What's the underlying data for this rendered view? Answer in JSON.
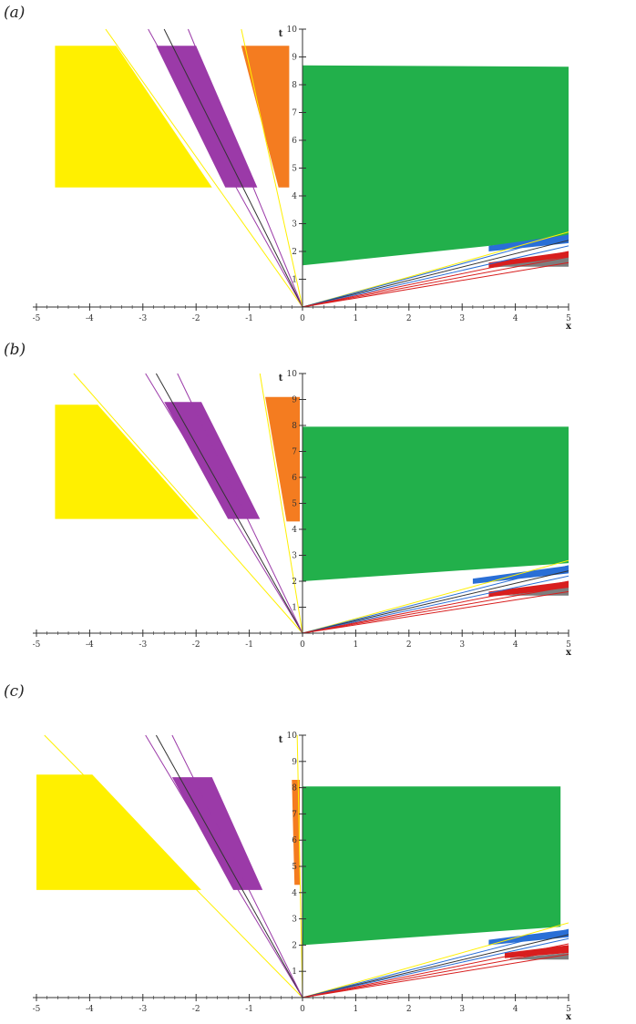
{
  "colors": {
    "yellow": "#fff000",
    "purple": "#9b3aa8",
    "orange": "#f47c20",
    "green": "#22b04b",
    "blue": "#2a6fd6",
    "red": "#d81e1e",
    "gray": "#7d7d7d",
    "dark": "#333333"
  },
  "chart_data": [
    {
      "type": "area",
      "panel_label": "(a)",
      "xlabel": "x",
      "ylabel": "t",
      "xlim": [
        -5,
        5
      ],
      "ylim": [
        0,
        10
      ],
      "x_ticks": [
        -5,
        -4,
        -3,
        -2,
        -1,
        0,
        1,
        2,
        3,
        4,
        5
      ],
      "y_ticks": [
        1,
        2,
        3,
        4,
        5,
        6,
        7,
        8,
        9,
        10
      ],
      "regions": [
        {
          "color": "yellow",
          "points": [
            [
              -4.65,
              9.4
            ],
            [
              -3.5,
              9.4
            ],
            [
              -1.7,
              4.3
            ],
            [
              -4.65,
              4.3
            ]
          ]
        },
        {
          "color": "purple",
          "points": [
            [
              -2.75,
              9.4
            ],
            [
              -2.0,
              9.4
            ],
            [
              -0.85,
              4.3
            ],
            [
              -1.45,
              4.3
            ]
          ]
        },
        {
          "color": "orange",
          "points": [
            [
              -1.15,
              9.4
            ],
            [
              -0.25,
              9.4
            ],
            [
              -0.25,
              4.3
            ],
            [
              -0.45,
              4.3
            ]
          ]
        },
        {
          "color": "green",
          "points": [
            [
              0.0,
              8.7
            ],
            [
              5.0,
              8.65
            ],
            [
              5.0,
              2.5
            ],
            [
              0.0,
              1.5
            ]
          ]
        },
        {
          "color": "blue",
          "points": [
            [
              3.5,
              2.2
            ],
            [
              5.0,
              2.6
            ],
            [
              5.0,
              2.3
            ],
            [
              3.5,
              2.0
            ]
          ]
        },
        {
          "color": "red",
          "points": [
            [
              3.5,
              1.6
            ],
            [
              5.0,
              2.0
            ],
            [
              5.0,
              1.7
            ],
            [
              3.5,
              1.4
            ]
          ]
        },
        {
          "color": "gray",
          "points": [
            [
              3.6,
              1.45
            ],
            [
              5.0,
              1.8
            ],
            [
              5.0,
              1.45
            ],
            [
              3.6,
              1.45
            ]
          ]
        }
      ],
      "rays": [
        {
          "color": "yellow",
          "x_end": -3.7,
          "t_end": 10
        },
        {
          "color": "purple",
          "x_end": -2.9,
          "t_end": 10
        },
        {
          "color": "dark",
          "x_end": -2.6,
          "t_end": 10
        },
        {
          "color": "purple",
          "x_end": -2.15,
          "t_end": 10
        },
        {
          "color": "yellow",
          "x_end": -1.15,
          "t_end": 10
        },
        {
          "color": "yellow",
          "x_end": 5.0,
          "t_end": 2.7
        },
        {
          "color": "blue",
          "x_end": 5.0,
          "t_end": 2.6
        },
        {
          "color": "dark",
          "x_end": 5.0,
          "t_end": 2.4
        },
        {
          "color": "blue",
          "x_end": 5.0,
          "t_end": 2.2
        },
        {
          "color": "red",
          "x_end": 5.0,
          "t_end": 2.0
        },
        {
          "color": "red",
          "x_end": 5.0,
          "t_end": 1.8
        },
        {
          "color": "red",
          "x_end": 5.0,
          "t_end": 1.6
        }
      ]
    },
    {
      "type": "area",
      "panel_label": "(b)",
      "xlabel": "x",
      "ylabel": "t",
      "xlim": [
        -5,
        5
      ],
      "ylim": [
        0,
        10
      ],
      "x_ticks": [
        -5,
        -4,
        -3,
        -2,
        -1,
        0,
        1,
        2,
        3,
        4,
        5
      ],
      "y_ticks": [
        1,
        2,
        3,
        4,
        5,
        6,
        7,
        8,
        9,
        10
      ],
      "regions": [
        {
          "color": "yellow",
          "points": [
            [
              -4.65,
              8.8
            ],
            [
              -3.85,
              8.8
            ],
            [
              -1.95,
              4.4
            ],
            [
              -4.65,
              4.4
            ]
          ]
        },
        {
          "color": "purple",
          "points": [
            [
              -2.6,
              8.9
            ],
            [
              -1.9,
              8.9
            ],
            [
              -0.8,
              4.4
            ],
            [
              -1.4,
              4.4
            ]
          ]
        },
        {
          "color": "orange",
          "points": [
            [
              -0.7,
              9.1
            ],
            [
              -0.05,
              9.1
            ],
            [
              -0.05,
              4.3
            ],
            [
              -0.3,
              4.3
            ]
          ]
        },
        {
          "color": "green",
          "points": [
            [
              0.0,
              7.95
            ],
            [
              5.0,
              7.95
            ],
            [
              5.0,
              2.7
            ],
            [
              0.0,
              2.0
            ]
          ]
        },
        {
          "color": "blue",
          "points": [
            [
              3.2,
              2.1
            ],
            [
              5.0,
              2.6
            ],
            [
              5.0,
              2.3
            ],
            [
              3.2,
              1.9
            ]
          ]
        },
        {
          "color": "red",
          "points": [
            [
              3.5,
              1.6
            ],
            [
              5.0,
              2.0
            ],
            [
              5.0,
              1.7
            ],
            [
              3.5,
              1.4
            ]
          ]
        },
        {
          "color": "gray",
          "points": [
            [
              3.8,
              1.45
            ],
            [
              5.0,
              1.75
            ],
            [
              5.0,
              1.45
            ],
            [
              3.8,
              1.45
            ]
          ]
        }
      ],
      "rays": [
        {
          "color": "yellow",
          "x_end": -4.3,
          "t_end": 10
        },
        {
          "color": "purple",
          "x_end": -2.95,
          "t_end": 10
        },
        {
          "color": "dark",
          "x_end": -2.75,
          "t_end": 10
        },
        {
          "color": "purple",
          "x_end": -2.35,
          "t_end": 10
        },
        {
          "color": "yellow",
          "x_end": -0.8,
          "t_end": 10
        },
        {
          "color": "yellow",
          "x_end": 5.0,
          "t_end": 2.8
        },
        {
          "color": "blue",
          "x_end": 5.0,
          "t_end": 2.6
        },
        {
          "color": "dark",
          "x_end": 5.0,
          "t_end": 2.4
        },
        {
          "color": "blue",
          "x_end": 5.0,
          "t_end": 2.2
        },
        {
          "color": "red",
          "x_end": 5.0,
          "t_end": 2.0
        },
        {
          "color": "red",
          "x_end": 5.0,
          "t_end": 1.8
        },
        {
          "color": "red",
          "x_end": 5.0,
          "t_end": 1.6
        }
      ]
    },
    {
      "type": "area",
      "panel_label": "(c)",
      "xlabel": "x",
      "ylabel": "t",
      "xlim": [
        -5,
        5
      ],
      "ylim": [
        0,
        10
      ],
      "x_ticks": [
        -5,
        -4,
        -3,
        -2,
        -1,
        0,
        1,
        2,
        3,
        4,
        5
      ],
      "y_ticks": [
        1,
        2,
        3,
        4,
        5,
        6,
        7,
        8,
        9,
        10
      ],
      "regions": [
        {
          "color": "yellow",
          "points": [
            [
              -5.0,
              8.5
            ],
            [
              -3.95,
              8.5
            ],
            [
              -1.9,
              4.1
            ],
            [
              -5.0,
              4.1
            ]
          ]
        },
        {
          "color": "purple",
          "points": [
            [
              -2.45,
              8.4
            ],
            [
              -1.7,
              8.4
            ],
            [
              -0.75,
              4.1
            ],
            [
              -1.3,
              4.1
            ]
          ]
        },
        {
          "color": "orange",
          "points": [
            [
              -0.2,
              8.3
            ],
            [
              -0.05,
              8.3
            ],
            [
              -0.05,
              4.3
            ],
            [
              -0.15,
              4.3
            ]
          ]
        },
        {
          "color": "green",
          "points": [
            [
              0.0,
              8.05
            ],
            [
              4.85,
              8.05
            ],
            [
              4.85,
              2.7
            ],
            [
              0.0,
              2.0
            ]
          ]
        },
        {
          "color": "blue",
          "points": [
            [
              3.5,
              2.2
            ],
            [
              5.0,
              2.6
            ],
            [
              5.0,
              2.3
            ],
            [
              3.5,
              2.0
            ]
          ]
        },
        {
          "color": "red",
          "points": [
            [
              3.8,
              1.7
            ],
            [
              5.0,
              2.0
            ],
            [
              5.0,
              1.7
            ],
            [
              3.8,
              1.5
            ]
          ]
        },
        {
          "color": "gray",
          "points": [
            [
              3.9,
              1.5
            ],
            [
              5.0,
              1.7
            ],
            [
              5.0,
              1.45
            ],
            [
              3.9,
              1.45
            ]
          ]
        }
      ],
      "rays": [
        {
          "color": "yellow",
          "x_end": -4.85,
          "t_end": 10
        },
        {
          "color": "purple",
          "x_end": -2.95,
          "t_end": 10
        },
        {
          "color": "dark",
          "x_end": -2.75,
          "t_end": 10
        },
        {
          "color": "purple",
          "x_end": -2.45,
          "t_end": 10
        },
        {
          "color": "yellow",
          "x_end": -0.1,
          "t_end": 10
        },
        {
          "color": "yellow",
          "x_end": 5.0,
          "t_end": 2.85
        },
        {
          "color": "blue",
          "x_end": 5.0,
          "t_end": 2.6
        },
        {
          "color": "dark",
          "x_end": 5.0,
          "t_end": 2.4
        },
        {
          "color": "blue",
          "x_end": 5.0,
          "t_end": 2.25
        },
        {
          "color": "red",
          "x_end": 5.0,
          "t_end": 2.05
        },
        {
          "color": "red",
          "x_end": 5.0,
          "t_end": 1.85
        },
        {
          "color": "red",
          "x_end": 5.0,
          "t_end": 1.65
        }
      ]
    }
  ]
}
